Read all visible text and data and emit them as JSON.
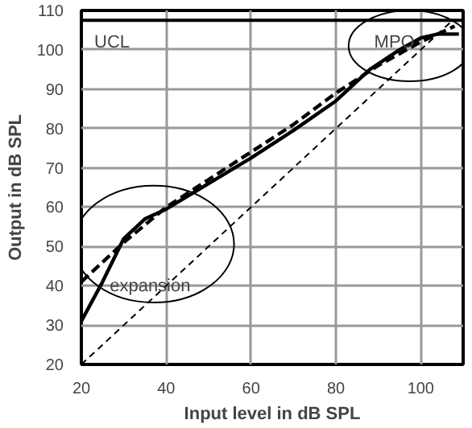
{
  "chart_data": {
    "type": "line",
    "xlabel": "Input level in dB SPL",
    "ylabel": "Output in dB SPL",
    "xlim": [
      20,
      110
    ],
    "ylim": [
      20,
      110
    ],
    "xticks": [
      20,
      40,
      60,
      80,
      100
    ],
    "yticks": [
      20,
      30,
      40,
      50,
      60,
      70,
      80,
      90,
      100,
      110
    ],
    "grid": true,
    "series": [
      {
        "color": "#000000",
        "line_style": "solid",
        "x": [
          20,
          25,
          30,
          35,
          40,
          50,
          60,
          70,
          80,
          88,
          95,
          100,
          104,
          109
        ],
        "values": [
          31,
          41,
          52,
          57,
          59.5,
          66,
          72.5,
          79.5,
          87,
          95,
          100,
          103,
          104,
          104
        ]
      },
      {
        "color": "#000000",
        "line_style": "dashed",
        "x": [
          20,
          30,
          40,
          50,
          60,
          70,
          80,
          90,
          100,
          108
        ],
        "values": [
          41,
          51,
          60,
          67,
          74,
          81,
          89,
          96,
          102,
          106
        ]
      },
      {
        "color": "#000000",
        "line_style": "dotted",
        "x": [
          20,
          107
        ],
        "values": [
          20,
          107
        ]
      }
    ],
    "ref_lines": [
      {
        "axis": "y",
        "value": 107.5,
        "label": "UCL",
        "color": "#000000"
      }
    ],
    "annotations": [
      "expansion",
      "MPO"
    ]
  }
}
